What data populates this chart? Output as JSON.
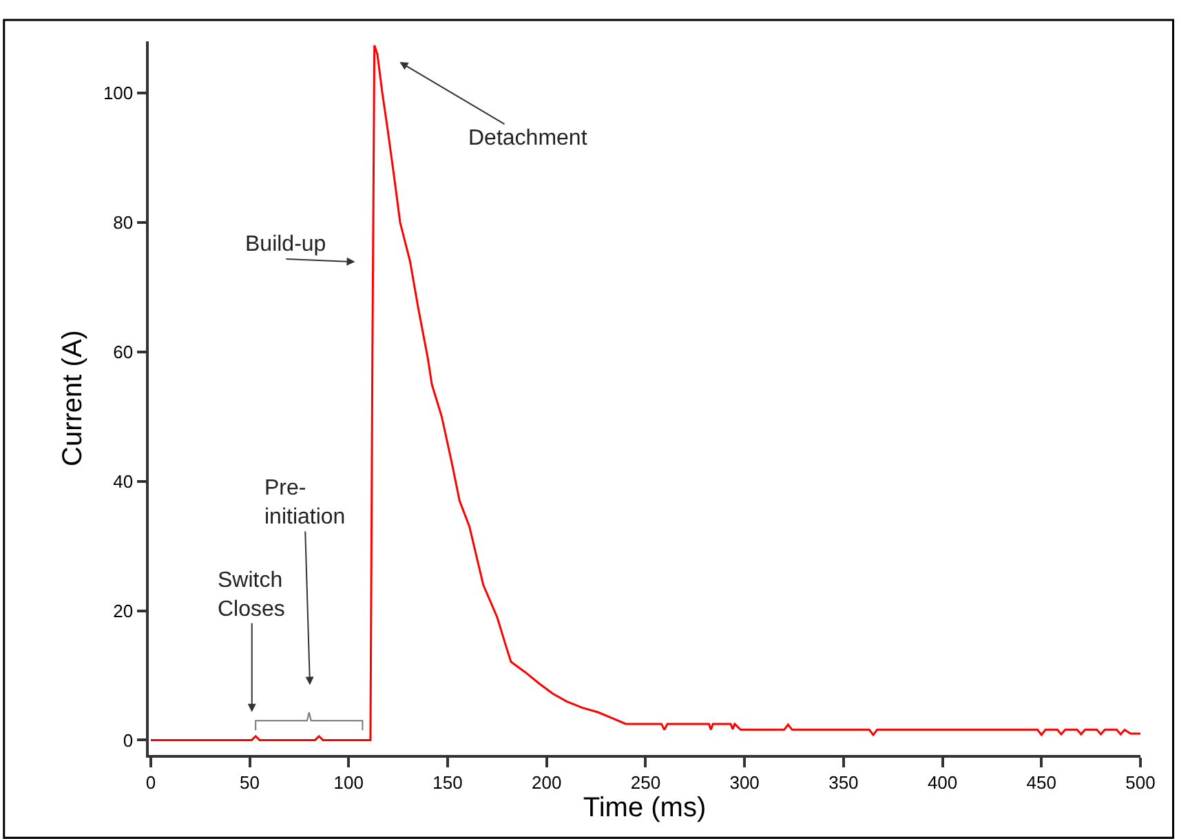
{
  "chart_data": {
    "type": "line",
    "xlabel": "Time (ms)",
    "ylabel": "Current (A)",
    "xlim": [
      -1,
      500
    ],
    "ylim": [
      -2.3,
      108
    ],
    "xticks": [
      0,
      50,
      100,
      150,
      200,
      250,
      300,
      350,
      400,
      450,
      500
    ],
    "yticks": [
      0,
      20,
      40,
      60,
      80,
      100
    ],
    "marker": "none",
    "line_style": "solid",
    "series": [
      {
        "color": "#ff0000",
        "x": [
          0,
          51,
          53,
          55,
          83,
          85,
          87,
          111,
          112,
          113,
          114.5,
          117,
          119.4,
          123,
          126,
          131,
          135,
          140,
          142,
          147,
          152,
          156,
          161,
          168,
          175,
          180,
          182,
          190,
          196,
          203,
          210,
          218,
          226,
          233,
          240,
          258,
          259.5,
          261,
          282,
          283,
          284,
          293,
          294,
          295,
          298,
          320,
          322,
          324,
          363,
          365,
          367,
          448,
          450,
          452,
          458,
          460,
          462,
          468,
          470,
          472,
          478,
          480,
          482,
          488,
          490,
          492,
          495,
          500
        ],
        "values": [
          0,
          0,
          0.6,
          0,
          0,
          0.6,
          0,
          0,
          60,
          107.4,
          106,
          100,
          95,
          87,
          80,
          74,
          67,
          59,
          55,
          50,
          43,
          37,
          33,
          24,
          19,
          14,
          12.1,
          10.3,
          8.8,
          7.2,
          6,
          5,
          4.3,
          3.4,
          2.5,
          2.5,
          1.6,
          2.5,
          2.5,
          1.6,
          2.5,
          2.5,
          1.7,
          2.5,
          1.6,
          1.6,
          2.4,
          1.6,
          1.6,
          0.8,
          1.6,
          1.6,
          0.8,
          1.6,
          1.6,
          0.9,
          1.6,
          1.6,
          0.9,
          1.6,
          1.6,
          0.9,
          1.6,
          1.6,
          0.9,
          1.6,
          1.0,
          1.0
        ]
      }
    ],
    "annotations": [
      "Detachment",
      "Build-up",
      "Switch\nCloses",
      "Pre-\ninitiation"
    ]
  }
}
